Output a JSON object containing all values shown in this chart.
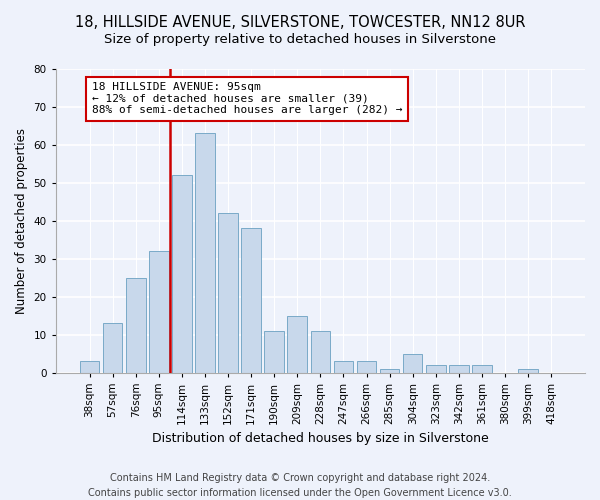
{
  "title": "18, HILLSIDE AVENUE, SILVERSTONE, TOWCESTER, NN12 8UR",
  "subtitle": "Size of property relative to detached houses in Silverstone",
  "xlabel": "Distribution of detached houses by size in Silverstone",
  "ylabel": "Number of detached properties",
  "categories": [
    "38sqm",
    "57sqm",
    "76sqm",
    "95sqm",
    "114sqm",
    "133sqm",
    "152sqm",
    "171sqm",
    "190sqm",
    "209sqm",
    "228sqm",
    "247sqm",
    "266sqm",
    "285sqm",
    "304sqm",
    "323sqm",
    "342sqm",
    "361sqm",
    "380sqm",
    "399sqm",
    "418sqm"
  ],
  "values": [
    3,
    13,
    25,
    32,
    52,
    63,
    42,
    38,
    11,
    15,
    11,
    3,
    3,
    1,
    5,
    2,
    2,
    2,
    0,
    1,
    0
  ],
  "bar_color": "#c8d8eb",
  "bar_edge_color": "#7aaac8",
  "vline_x_index": 3,
  "vline_color": "#cc0000",
  "annotation_line1": "18 HILLSIDE AVENUE: 95sqm",
  "annotation_line2": "← 12% of detached houses are smaller (39)",
  "annotation_line3": "88% of semi-detached houses are larger (282) →",
  "annotation_box_facecolor": "#ffffff",
  "annotation_box_edgecolor": "#cc0000",
  "ylim": [
    0,
    80
  ],
  "yticks": [
    0,
    10,
    20,
    30,
    40,
    50,
    60,
    70,
    80
  ],
  "footer_line1": "Contains HM Land Registry data © Crown copyright and database right 2024.",
  "footer_line2": "Contains public sector information licensed under the Open Government Licence v3.0.",
  "background_color": "#eef2fb",
  "grid_color": "#ffffff",
  "title_fontsize": 10.5,
  "subtitle_fontsize": 9.5,
  "xlabel_fontsize": 9,
  "ylabel_fontsize": 8.5,
  "tick_fontsize": 7.5,
  "annotation_fontsize": 8,
  "footer_fontsize": 7
}
